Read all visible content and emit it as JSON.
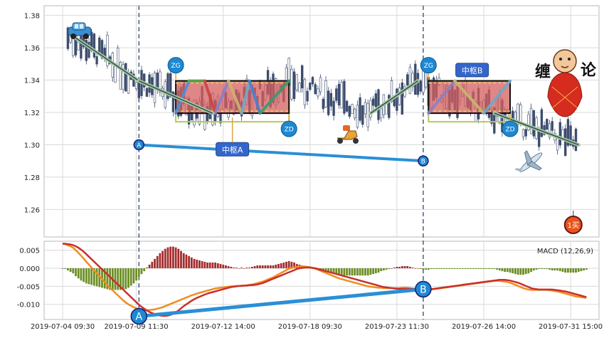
{
  "chart_data": [
    {
      "type": "candlestick",
      "title": "",
      "y_ticks": [
        "1.38",
        "1.36",
        "1.34",
        "1.32",
        "1.30",
        "1.28",
        "1.26"
      ],
      "ylim": [
        1.243,
        1.386
      ],
      "x_ticks": [
        "2019-07-04 09:30",
        "2019-07-09 11:30",
        "2019-07-12 14:00",
        "2019-07-18 09:30",
        "2019-07-23 11:30",
        "2019-07-26 14:00",
        "2019-07-31 15:00"
      ],
      "x_tick_index": [
        0,
        28,
        61,
        94,
        127,
        160,
        193
      ],
      "bar_count": 200,
      "bar_colors": {
        "up": "#ffffff",
        "down": "#3d4d6e"
      },
      "stroke_path": [
        {
          "i": 5,
          "y": 1.366
        },
        {
          "i": 29,
          "y": 1.3395
        },
        {
          "i": 57,
          "y": 1.3195
        },
        {
          "i": 86,
          "y": 1.3395
        },
        {
          "i": 117,
          "y": 1.3195
        },
        {
          "i": 135,
          "y": 1.3395
        },
        {
          "i": 164,
          "y": 1.3195
        },
        {
          "i": 196,
          "y": 1.3
        }
      ],
      "trend_line": [
        {
          "i": 5,
          "y": 1.366
        },
        {
          "i": 29,
          "y": 1.3395
        },
        {
          "i": 57,
          "y": 1.3195
        },
        {
          "i": 86,
          "y": 1.3395
        },
        {
          "i": 117,
          "y": 1.3195
        },
        {
          "i": 135,
          "y": 1.3395
        },
        {
          "i": 164,
          "y": 1.3195
        },
        {
          "i": 196,
          "y": 1.3
        }
      ],
      "zhongshu": [
        {
          "label": "中枢A",
          "i0": 43,
          "i1": 86,
          "zg": 1.3395,
          "zd": 1.3195,
          "zg_label": "ZG",
          "zd_label": "ZD",
          "zig": [
            {
              "i": 43,
              "y": 1.3195
            },
            {
              "i": 48,
              "y": 1.3395
            },
            {
              "i": 54,
              "y": 1.3395
            },
            {
              "i": 58,
              "y": 1.3195
            },
            {
              "i": 63,
              "y": 1.3395
            },
            {
              "i": 68,
              "y": 1.3195
            },
            {
              "i": 71,
              "y": 1.3395
            },
            {
              "i": 75,
              "y": 1.3195
            },
            {
              "i": 86,
              "y": 1.3395
            }
          ]
        },
        {
          "label": "中枢B",
          "i0": 139,
          "i1": 170,
          "zg": 1.3395,
          "zd": 1.3195,
          "zg_label": "ZG",
          "zd_label": "ZD",
          "zig": [
            {
              "i": 139,
              "y": 1.3195
            },
            {
              "i": 149,
              "y": 1.3395
            },
            {
              "i": 160,
              "y": 1.3195
            },
            {
              "i": 170,
              "y": 1.3395
            }
          ]
        }
      ],
      "ab_line": {
        "a_label": "A",
        "b_label": "B",
        "a": {
          "i": 29,
          "y": 1.3
        },
        "b": {
          "i": 137,
          "y": 1.29
        }
      },
      "vlines_index": [
        29,
        137
      ],
      "buy_marker": {
        "label": "1买",
        "i": 194,
        "y": 1.2505
      },
      "stickers": [
        "缠",
        "论"
      ]
    },
    {
      "type": "macd",
      "legend": "MACD (12,26,9)",
      "y_ticks": [
        "0.005",
        "0.000",
        "-0.005",
        "-0.010"
      ],
      "ylim": [
        -0.0142,
        0.0075
      ],
      "dif": [
        0.0068,
        0.0067,
        0.0064,
        0.0061,
        0.0057,
        0.005,
        0.0043,
        0.0035,
        0.0027,
        0.0018,
        0.001,
        0.0002,
        -0.0006,
        -0.0014,
        -0.0022,
        -0.003,
        -0.0038,
        -0.0046,
        -0.0054,
        -0.0061,
        -0.0068,
        -0.0075,
        -0.0082,
        -0.0089,
        -0.0095,
        -0.01,
        -0.0104,
        -0.0108,
        -0.0111,
        -0.0113,
        -0.0115,
        -0.0116,
        -0.0116,
        -0.0116,
        -0.0115,
        -0.0114,
        -0.0112,
        -0.011,
        -0.0108,
        -0.0105,
        -0.0102,
        -0.0099,
        -0.0096,
        -0.0093,
        -0.009,
        -0.0087,
        -0.0084,
        -0.0081,
        -0.0078,
        -0.0075,
        -0.0073,
        -0.007,
        -0.0068,
        -0.0066,
        -0.0064,
        -0.0062,
        -0.006,
        -0.0058,
        -0.0056,
        -0.0055,
        -0.0054,
        -0.0053,
        -0.0052,
        -0.0051,
        -0.005,
        -0.005,
        -0.0049,
        -0.0049,
        -0.0048,
        -0.0048,
        -0.0047,
        -0.0046,
        -0.0045,
        -0.0043,
        -0.0041,
        -0.0039,
        -0.0037,
        -0.0034,
        -0.0031,
        -0.0028,
        -0.0025,
        -0.0021,
        -0.0017,
        -0.0013,
        -0.0009,
        -0.0005,
        -0.0001,
        0.0001,
        0.0003,
        0.0004,
        0.0005,
        0.0005,
        0.0005,
        0.0004,
        0.0003,
        0.0001,
        -0.0001,
        -0.0004,
        -0.0007,
        -0.001,
        -0.0013,
        -0.0016,
        -0.0019,
        -0.0022,
        -0.0025,
        -0.0028,
        -0.003,
        -0.0032,
        -0.0034,
        -0.0036,
        -0.0038,
        -0.004,
        -0.0042,
        -0.0044,
        -0.0046,
        -0.0048,
        -0.005,
        -0.0051,
        -0.0052,
        -0.0053,
        -0.0054,
        -0.0054,
        -0.0055,
        -0.0055,
        -0.0055,
        -0.0055,
        -0.0055,
        -0.0055,
        -0.0055,
        -0.0054,
        -0.0054,
        -0.0054,
        -0.0055,
        -0.0056,
        -0.0057,
        -0.0058,
        -0.0059,
        -0.006,
        -0.006,
        -0.006,
        -0.0059,
        -0.0058,
        -0.0057,
        -0.0056,
        -0.0055,
        -0.0054,
        -0.0053,
        -0.0052,
        -0.0051,
        -0.005,
        -0.0049,
        -0.0048,
        -0.0047,
        -0.0046,
        -0.0045,
        -0.0044,
        -0.0043,
        -0.0042,
        -0.0041,
        -0.004,
        -0.0039,
        -0.0038,
        -0.0037,
        -0.0036,
        -0.0035,
        -0.0035,
        -0.0035,
        -0.0036,
        -0.0037,
        -0.0038,
        -0.004,
        -0.0043,
        -0.0046,
        -0.0049,
        -0.0052,
        -0.0055,
        -0.0057,
        -0.0059,
        -0.006,
        -0.006,
        -0.006,
        -0.006,
        -0.006,
        -0.006,
        -0.006,
        -0.0061,
        -0.0062,
        -0.0063,
        -0.0064,
        -0.0066,
        -0.0068,
        -0.007,
        -0.0072,
        -0.0074,
        -0.0076,
        -0.0078,
        -0.0079,
        -0.008,
        -0.0081,
        -0.0082
      ],
      "dea": [
        0.0068,
        0.0068,
        0.0067,
        0.0066,
        0.0064,
        0.0061,
        0.0057,
        0.0052,
        0.0046,
        0.0039,
        0.0032,
        0.0025,
        0.0018,
        0.0011,
        0.0004,
        -0.0003,
        -0.001,
        -0.0017,
        -0.0024,
        -0.0031,
        -0.0038,
        -0.0045,
        -0.0052,
        -0.0059,
        -0.0066,
        -0.0073,
        -0.008,
        -0.0087,
        -0.0094,
        -0.0101,
        -0.0107,
        -0.0112,
        -0.0117,
        -0.0121,
        -0.0124,
        -0.0127,
        -0.0129,
        -0.0131,
        -0.0132,
        -0.0132,
        -0.0131,
        -0.0129,
        -0.0126,
        -0.0122,
        -0.0117,
        -0.0111,
        -0.0105,
        -0.01,
        -0.0095,
        -0.009,
        -0.0086,
        -0.0082,
        -0.0079,
        -0.0076,
        -0.0073,
        -0.007,
        -0.0068,
        -0.0066,
        -0.0064,
        -0.0062,
        -0.006,
        -0.0058,
        -0.0056,
        -0.0054,
        -0.0052,
        -0.0051,
        -0.005,
        -0.0049,
        -0.0049,
        -0.0048,
        -0.0048,
        -0.0047,
        -0.0047,
        -0.0046,
        -0.0045,
        -0.0043,
        -0.0041,
        -0.0038,
        -0.0035,
        -0.0032,
        -0.0029,
        -0.0026,
        -0.0023,
        -0.002,
        -0.0017,
        -0.0014,
        -0.0011,
        -0.0008,
        -0.0005,
        -0.0002,
        0.0,
        0.0001,
        0.0002,
        0.0002,
        0.0002,
        0.0001,
        0.0,
        -0.0002,
        -0.0004,
        -0.0006,
        -0.0008,
        -0.001,
        -0.0012,
        -0.0014,
        -0.0016,
        -0.0018,
        -0.002,
        -0.0022,
        -0.0024,
        -0.0026,
        -0.0028,
        -0.003,
        -0.0032,
        -0.0034,
        -0.0036,
        -0.0038,
        -0.004,
        -0.0042,
        -0.0044,
        -0.0046,
        -0.0048,
        -0.005,
        -0.0052,
        -0.0053,
        -0.0054,
        -0.0055,
        -0.0056,
        -0.0057,
        -0.0057,
        -0.0057,
        -0.0057,
        -0.0057,
        -0.0057,
        -0.0057,
        -0.0057,
        -0.0058,
        -0.0058,
        -0.0058,
        -0.0058,
        -0.0058,
        -0.0058,
        -0.0057,
        -0.0056,
        -0.0055,
        -0.0054,
        -0.0053,
        -0.0052,
        -0.0051,
        -0.005,
        -0.0049,
        -0.0048,
        -0.0047,
        -0.0046,
        -0.0045,
        -0.0044,
        -0.0043,
        -0.0042,
        -0.0041,
        -0.004,
        -0.0039,
        -0.0038,
        -0.0037,
        -0.0036,
        -0.0035,
        -0.0034,
        -0.0033,
        -0.0032,
        -0.0032,
        -0.0032,
        -0.0033,
        -0.0034,
        -0.0036,
        -0.0038,
        -0.004,
        -0.0043,
        -0.0046,
        -0.0049,
        -0.0052,
        -0.0055,
        -0.0057,
        -0.0058,
        -0.0059,
        -0.0059,
        -0.0059,
        -0.0059,
        -0.0059,
        -0.0059,
        -0.006,
        -0.0061,
        -0.0062,
        -0.0063,
        -0.0064,
        -0.0066,
        -0.0068,
        -0.007,
        -0.0072,
        -0.0074,
        -0.0076,
        -0.0078,
        -0.008
      ],
      "hist_colors": {
        "positive": "#a32c2c",
        "negative": "#6b8e23"
      },
      "ab_labels": [
        "A",
        "B"
      ]
    }
  ],
  "colors": {
    "grid": "#d9d9d9",
    "frame": "#b8b8b8",
    "candle_down": "#3d4d6e",
    "trend": "#2f4f4f",
    "zg_zd_badge": "#1e88d2",
    "center_label": "#3366cc",
    "ab_line": "#2a8fd6",
    "dif": "#f08c1e",
    "dea": "#c9302c",
    "box_fill": "#d45d5d"
  }
}
